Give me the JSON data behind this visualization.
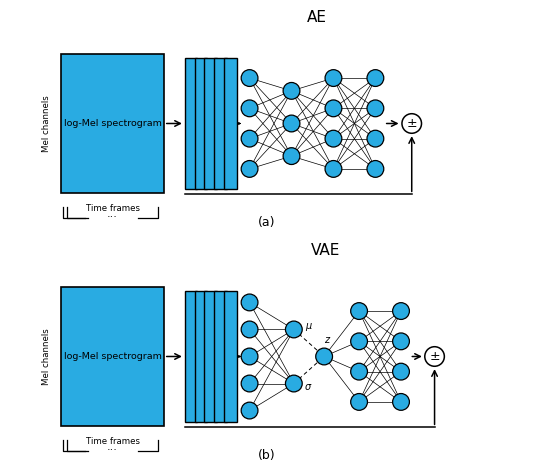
{
  "fig_width": 5.42,
  "fig_height": 4.66,
  "dpi": 100,
  "blue_color": "#29ABE2",
  "black": "#000000",
  "white": "#FFFFFF",
  "panel_a_label": "(a)",
  "panel_b_label": "(b)",
  "ae_title": "AE",
  "vae_title": "VAE",
  "spectrogram_text": "log-Mel spectrogram",
  "mel_label": "Mel channels",
  "time_label": "Time frames",
  "mu_label": "μ",
  "sigma_label": "σ",
  "z_label": "z",
  "pm_symbol": "±"
}
